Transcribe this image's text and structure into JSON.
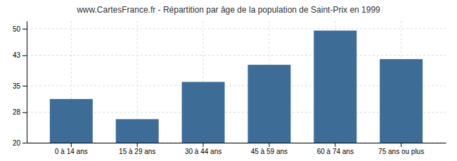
{
  "chart_data": {
    "type": "bar",
    "title": "www.CartesFrance.fr - Répartition par âge de la population de Saint-Prix en 1999",
    "categories": [
      "0 à 14 ans",
      "15 à 29 ans",
      "30 à 44 ans",
      "45 à 59 ans",
      "60 à 74 ans",
      "75 ans ou plus"
    ],
    "values": [
      31.5,
      26.2,
      36.0,
      40.5,
      49.5,
      42.0
    ],
    "color": "#3d6d96",
    "ylim": [
      20,
      52
    ],
    "yticks": [
      20,
      28,
      35,
      43,
      50
    ],
    "grid": true
  }
}
